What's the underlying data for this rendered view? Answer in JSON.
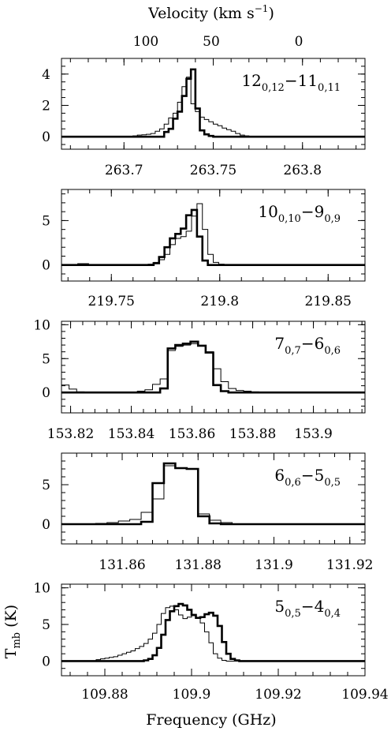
{
  "top_axis": {
    "label": "Velocity (km s",
    "label_exp": "−1",
    "label_close": ")",
    "ticks": [
      {
        "value": 100,
        "label": "100"
      },
      {
        "value": 50,
        "label": "50"
      },
      {
        "value": 0,
        "label": "0"
      }
    ]
  },
  "x_axis_title": "Frequency (GHz)",
  "y_axis_title": {
    "main": "T",
    "sub": "mb",
    "unit": " (K)"
  },
  "chart_data": [
    {
      "type": "line",
      "transition": {
        "j": "12",
        "sub1": "0,12",
        "dash": "−",
        "j2": "11",
        "sub2": "0,11"
      },
      "xlim": [
        263.665,
        263.835
      ],
      "ylim": [
        -0.8,
        5.0
      ],
      "x_ticks": [
        {
          "value": 263.7,
          "label": "263.7"
        },
        {
          "value": 263.75,
          "label": "263.75"
        },
        {
          "value": 263.8,
          "label": "263.8"
        }
      ],
      "y_ticks": [
        {
          "value": 0,
          "label": "0"
        },
        {
          "value": 2,
          "label": "2"
        },
        {
          "value": 4,
          "label": "4"
        }
      ],
      "bin_width": 0.0025,
      "series": [
        {
          "style": "thin",
          "x_start": 263.665,
          "values": [
            0,
            0,
            0,
            0,
            0,
            0,
            0,
            0,
            0,
            0,
            0,
            0,
            0,
            0,
            0,
            0,
            0.05,
            0.1,
            0.12,
            0.15,
            0.2,
            0.35,
            0.5,
            0.8,
            1.2,
            1.5,
            2.2,
            3.2,
            3.8,
            2.1,
            1.6,
            1.25,
            1.1,
            0.95,
            0.8,
            0.7,
            0.55,
            0.45,
            0.35,
            0.2,
            0.1,
            0.05,
            0,
            0,
            0,
            0,
            0,
            0,
            0,
            0,
            0,
            0,
            0,
            0,
            0,
            0,
            0,
            0,
            0,
            0,
            0,
            0,
            0,
            0,
            0,
            0,
            0,
            0
          ]
        },
        {
          "style": "thick",
          "x_start": 263.665,
          "values": [
            0,
            0,
            0,
            0,
            0,
            0,
            0,
            0,
            0,
            0,
            0,
            0,
            0,
            0,
            0,
            0,
            0,
            0,
            0,
            0,
            0,
            0,
            0,
            0.3,
            0.5,
            1.15,
            1.6,
            2.6,
            3.7,
            4.3,
            1.8,
            0.4,
            0.15,
            0.05,
            0,
            0,
            0,
            0,
            0,
            0,
            0,
            0,
            0,
            0,
            0,
            0,
            0,
            0,
            0,
            0,
            0,
            0,
            0,
            0,
            0,
            0,
            0,
            0,
            0,
            0,
            0,
            0,
            0,
            0,
            0,
            0,
            0,
            0
          ]
        }
      ]
    },
    {
      "type": "line",
      "transition": {
        "j": "10",
        "sub1": "0,10",
        "dash": "−",
        "j2": "9",
        "sub2": "0,9"
      },
      "xlim": [
        219.727,
        219.867
      ],
      "ylim": [
        -1.8,
        8.5
      ],
      "x_ticks": [
        {
          "value": 219.75,
          "label": "219.75"
        },
        {
          "value": 219.8,
          "label": "219.8"
        },
        {
          "value": 219.85,
          "label": "219.85"
        }
      ],
      "y_ticks": [
        {
          "value": 0,
          "label": "0"
        },
        {
          "value": 5,
          "label": "5"
        }
      ],
      "bin_width": 0.0025,
      "series": [
        {
          "style": "thin",
          "x_start": 219.727,
          "values": [
            0,
            0,
            0,
            0.15,
            0.15,
            0,
            0,
            0,
            0,
            0,
            0,
            0,
            0,
            0,
            0,
            0,
            0.1,
            0.3,
            0.6,
            1.2,
            2.3,
            3.0,
            3.2,
            3.8,
            5.5,
            6.9,
            4.0,
            1.2,
            0.3,
            0.1,
            0,
            0,
            0,
            0,
            0,
            0,
            0,
            0,
            0,
            0,
            0,
            0,
            0,
            0,
            0,
            0,
            0,
            0,
            0,
            0,
            0,
            0,
            0,
            0,
            0,
            0
          ]
        },
        {
          "style": "thick",
          "x_start": 219.727,
          "values": [
            0,
            0,
            0,
            0,
            0,
            0,
            0,
            0,
            0,
            0,
            0,
            0,
            0,
            0,
            0,
            0,
            0,
            0.2,
            0.9,
            2.0,
            3.0,
            3.5,
            4.1,
            5.6,
            6.2,
            3.2,
            0.5,
            0,
            0,
            0,
            0,
            0,
            0,
            0,
            0,
            0,
            0,
            0,
            0,
            0,
            0,
            0,
            0,
            0,
            0,
            0,
            0,
            0,
            0,
            0,
            0,
            0,
            0,
            0,
            0,
            0
          ]
        }
      ]
    },
    {
      "type": "line",
      "transition": {
        "j": "7",
        "sub1": "0,7",
        "dash": "−",
        "j2": "6",
        "sub2": "0,6"
      },
      "xlim": [
        153.817,
        153.917
      ],
      "ylim": [
        -3.0,
        10.5
      ],
      "x_ticks": [
        {
          "value": 153.82,
          "label": "153.82"
        },
        {
          "value": 153.84,
          "label": "153.84"
        },
        {
          "value": 153.86,
          "label": "153.86"
        },
        {
          "value": 153.88,
          "label": "153.88"
        },
        {
          "value": 153.9,
          "label": "153.9"
        }
      ],
      "y_ticks": [
        {
          "value": 0,
          "label": "0"
        },
        {
          "value": 5,
          "label": "5"
        },
        {
          "value": 10,
          "label": "10"
        }
      ],
      "bin_width": 0.0025,
      "series": [
        {
          "style": "thin",
          "x_start": 153.817,
          "values": [
            1.1,
            0.5,
            0.1,
            0,
            0,
            0,
            0,
            0,
            0,
            0,
            0.2,
            0.4,
            1.2,
            2.0,
            6.2,
            6.8,
            7.0,
            7.2,
            6.9,
            6.0,
            3.5,
            1.6,
            0.6,
            0.3,
            0.2,
            0.1,
            0,
            0,
            0,
            0,
            0,
            0,
            0,
            0,
            0,
            0,
            0,
            0,
            0,
            0
          ]
        },
        {
          "style": "thick",
          "x_start": 153.817,
          "values": [
            0,
            0,
            0,
            0,
            0,
            0,
            0,
            0,
            0,
            0,
            0,
            0,
            0,
            0.6,
            6.5,
            7.0,
            7.2,
            7.5,
            6.9,
            5.9,
            1.1,
            0.2,
            0,
            0,
            0,
            0,
            0,
            0,
            0,
            0,
            0,
            0,
            0,
            0,
            0,
            0,
            0,
            0,
            0,
            0
          ]
        }
      ]
    },
    {
      "type": "line",
      "transition": {
        "j": "6",
        "sub1": "0,6",
        "dash": "−",
        "j2": "5",
        "sub2": "0,5"
      },
      "xlim": [
        131.844,
        131.924
      ],
      "ylim": [
        -2.5,
        9.0
      ],
      "x_ticks": [
        {
          "value": 131.86,
          "label": "131.86"
        },
        {
          "value": 131.88,
          "label": "131.88"
        },
        {
          "value": 131.9,
          "label": "131.9"
        },
        {
          "value": 131.92,
          "label": "131.92"
        }
      ],
      "y_ticks": [
        {
          "value": 0,
          "label": "0"
        },
        {
          "value": 5,
          "label": "5"
        }
      ],
      "bin_width": 0.003,
      "series": [
        {
          "style": "thin",
          "x_start": 131.844,
          "values": [
            0,
            0,
            0,
            0.1,
            0.2,
            0.4,
            0.6,
            1.5,
            3.2,
            7.4,
            7.1,
            7.0,
            1.3,
            0.5,
            0.2,
            0,
            0,
            0,
            0,
            0,
            0,
            0,
            0,
            0,
            0,
            0,
            0
          ]
        },
        {
          "style": "thick",
          "x_start": 131.844,
          "values": [
            0,
            0,
            0,
            0,
            0,
            0,
            0,
            0.3,
            5.2,
            7.7,
            7.1,
            7.0,
            1.0,
            0.1,
            0,
            0,
            0,
            0,
            0,
            0,
            0,
            0,
            0,
            0,
            0,
            0,
            0
          ]
        }
      ]
    },
    {
      "type": "line",
      "transition": {
        "j": "5",
        "sub1": "0,5",
        "dash": "−",
        "j2": "4",
        "sub2": "0,4"
      },
      "xlim": [
        109.87,
        109.94
      ],
      "ylim": [
        -2.0,
        10.5
      ],
      "x_ticks": [
        {
          "value": 109.88,
          "label": "109.88"
        },
        {
          "value": 109.9,
          "label": "109.9"
        },
        {
          "value": 109.92,
          "label": "109.92"
        },
        {
          "value": 109.94,
          "label": "109.94"
        }
      ],
      "y_ticks": [
        {
          "value": 0,
          "label": "0"
        },
        {
          "value": 5,
          "label": "5"
        },
        {
          "value": 10,
          "label": "10"
        }
      ],
      "bin_width": 0.001,
      "series": [
        {
          "style": "thin",
          "x_start": 109.87,
          "values": [
            0,
            0,
            0,
            0,
            0,
            0,
            0,
            0,
            0.2,
            0.3,
            0.4,
            0.5,
            0.6,
            0.8,
            1.0,
            1.2,
            1.4,
            1.7,
            2.0,
            2.4,
            3.0,
            3.8,
            5.0,
            6.5,
            7.3,
            7.5,
            7.0,
            6.3,
            5.8,
            6.0,
            6.2,
            5.9,
            5.2,
            4.0,
            2.5,
            1.0,
            0.4,
            0.1,
            0,
            0,
            0,
            0,
            0,
            0,
            0,
            0,
            0,
            0,
            0,
            0,
            0,
            0,
            0,
            0,
            0,
            0,
            0,
            0,
            0,
            0,
            0,
            0,
            0,
            0,
            0,
            0,
            0,
            0,
            0,
            0
          ]
        },
        {
          "style": "thick",
          "x_start": 109.87,
          "values": [
            0,
            0,
            0,
            0,
            0,
            0,
            0,
            0,
            0,
            0,
            0,
            0,
            0,
            0,
            0,
            0,
            0,
            0,
            0,
            0.1,
            0.3,
            0.8,
            1.8,
            3.6,
            5.6,
            6.8,
            7.5,
            7.8,
            7.6,
            7.0,
            6.3,
            5.9,
            6.0,
            6.4,
            6.6,
            6.2,
            4.8,
            2.6,
            1.0,
            0.3,
            0.1,
            0,
            0,
            0,
            0,
            0,
            0,
            0,
            0,
            0,
            0,
            0,
            0,
            0,
            0,
            0,
            0,
            0,
            0,
            0,
            0,
            0,
            0,
            0,
            0,
            0,
            0,
            0,
            0,
            0
          ]
        }
      ]
    }
  ]
}
